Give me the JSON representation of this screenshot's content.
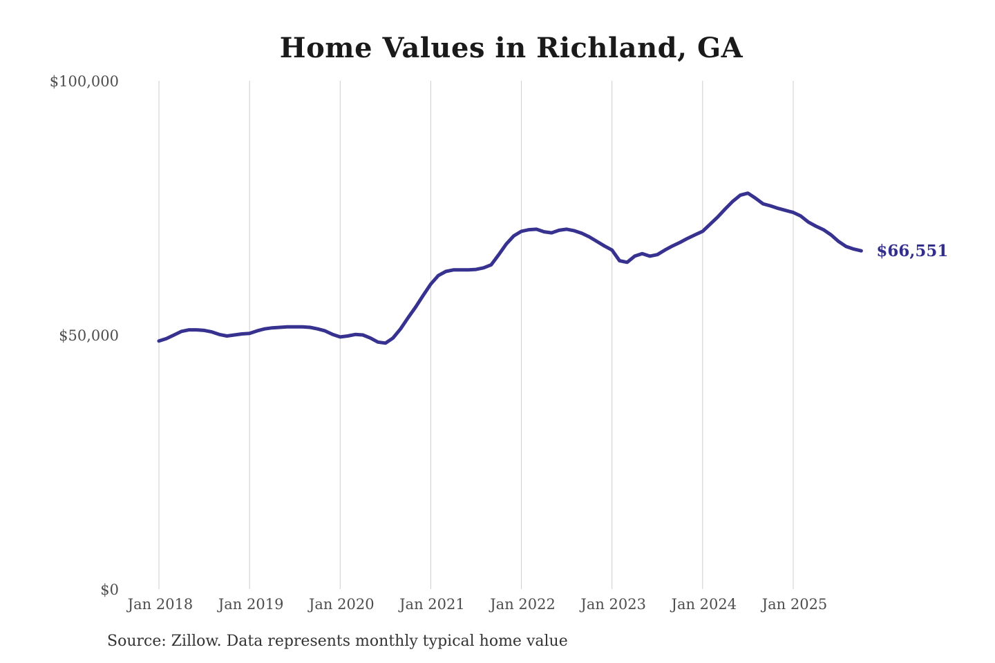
{
  "title": "Home Values in Richland, GA",
  "source_note": "Source: Zillow. Data represents monthly typical home value",
  "colors": {
    "line": "#37318f",
    "end_label": "#322e8e",
    "grid": "#cccccc",
    "axis_text": "#4d4d4d",
    "title_text": "#1a1a1a",
    "background": "#ffffff"
  },
  "chart_data": {
    "type": "line",
    "title": "Home Values in Richland, GA",
    "xlabel": "",
    "ylabel": "",
    "x_start": "2018-01",
    "x_end": "2025-10",
    "x_interval": "monthly",
    "x_tick_labels": [
      "Jan 2018",
      "Jan 2019",
      "Jan 2020",
      "Jan 2021",
      "Jan 2022",
      "Jan 2023",
      "Jan 2024",
      "Jan 2025"
    ],
    "y_tick_labels": [
      "$0",
      "$50,000",
      "$100,000"
    ],
    "y_tick_values": [
      0,
      50000,
      100000
    ],
    "ylim": [
      0,
      100000
    ],
    "grid": "vertical-only",
    "legend": "none",
    "end_label": "$66,551",
    "series": [
      {
        "name": "Monthly typical home value",
        "values": [
          48800,
          49300,
          50000,
          50700,
          51000,
          51000,
          50900,
          50600,
          50100,
          49800,
          50000,
          50200,
          50300,
          50800,
          51200,
          51400,
          51500,
          51600,
          51600,
          51600,
          51500,
          51200,
          50800,
          50100,
          49600,
          49800,
          50100,
          50000,
          49400,
          48600,
          48400,
          49400,
          51200,
          53400,
          55500,
          57800,
          60000,
          61700,
          62500,
          62800,
          62800,
          62800,
          62900,
          63200,
          63800,
          65800,
          67900,
          69500,
          70400,
          70700,
          70800,
          70300,
          70100,
          70600,
          70800,
          70500,
          70000,
          69300,
          68400,
          67500,
          66700,
          64600,
          64300,
          65500,
          66000,
          65500,
          65800,
          66700,
          67500,
          68200,
          69000,
          69700,
          70400,
          71800,
          73200,
          74800,
          76300,
          77500,
          77900,
          76900,
          75800,
          75400,
          74900,
          74500,
          74100,
          73400,
          72200,
          71400,
          70700,
          69700,
          68400,
          67400,
          66900,
          66551
        ]
      }
    ]
  }
}
